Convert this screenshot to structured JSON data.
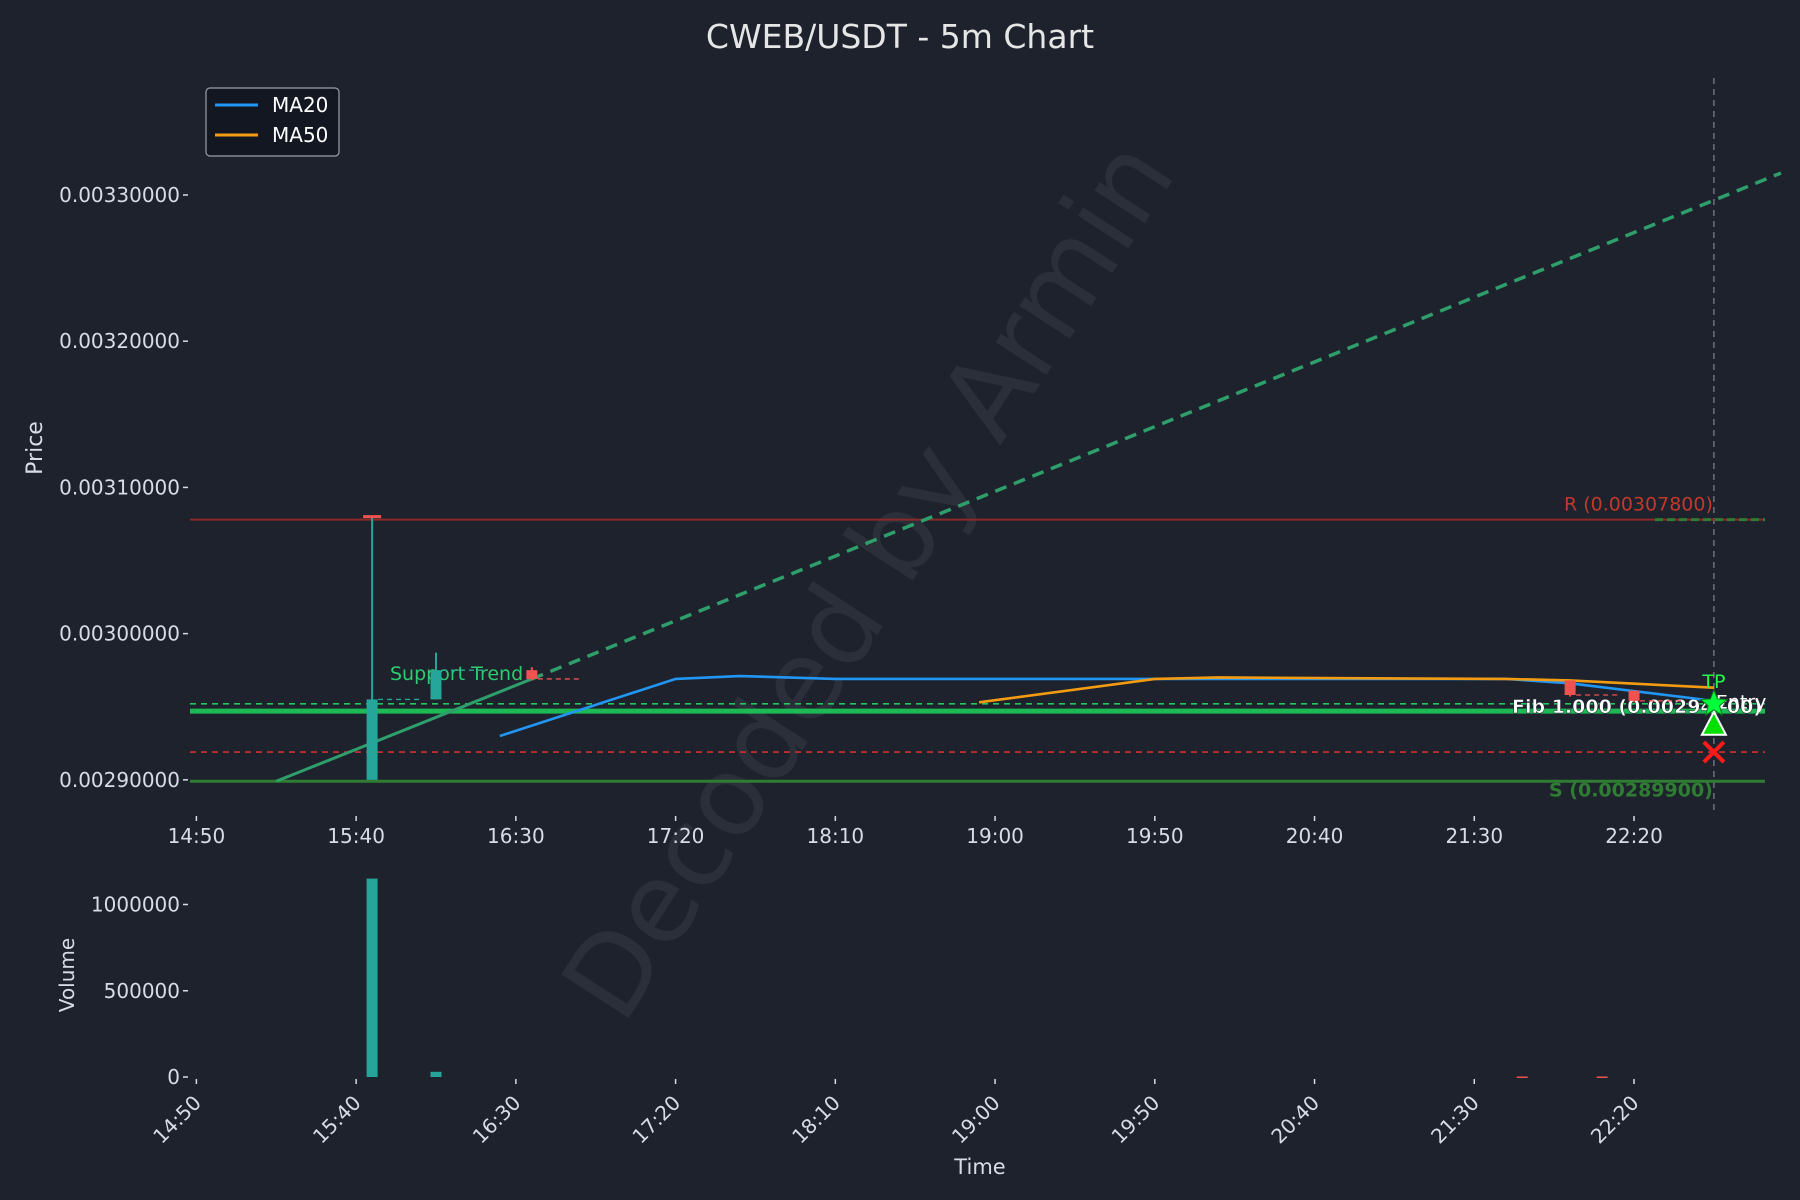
{
  "colors": {
    "background": "#1e222d",
    "text": "#d8dce6",
    "up": "#26a69a",
    "down": "#ef5350",
    "ma20": "#2196f3",
    "ma50": "#f39c12",
    "resistance": "#8b2a2a",
    "support": "#2e7d32",
    "trend": "#2e9e6a",
    "fib_green": "#1db954",
    "stop_red": "#d32f2f"
  },
  "chart_data": [
    {
      "type": "candlestick",
      "title": "CWEB/USDT - 5m Chart",
      "xlabel": "",
      "ylabel": "Price",
      "x_tick_labels": [
        "14:50",
        "15:40",
        "16:30",
        "17:20",
        "18:10",
        "19:00",
        "19:50",
        "20:40",
        "21:30",
        "22:20"
      ],
      "x_range": [
        "14:48",
        "23:01"
      ],
      "y_ticks": [
        "0.00290000",
        "0.00300000",
        "0.00310000",
        "0.00320000",
        "0.00330000"
      ],
      "ylim": [
        0.002878,
        0.00338
      ],
      "legend": {
        "position": "top-left",
        "entries": [
          "MA20",
          "MA50"
        ]
      },
      "candles": [
        {
          "t": "15:45",
          "open": 0.0029,
          "high": 0.00308,
          "low": 0.0029,
          "close": 0.002955
        },
        {
          "t": "16:05",
          "open": 0.002955,
          "high": 0.002987,
          "low": 0.002955,
          "close": 0.002975
        },
        {
          "t": "16:35",
          "open": 0.002975,
          "high": 0.002977,
          "low": 0.002968,
          "close": 0.002969
        },
        {
          "t": "22:00",
          "open": 0.002968,
          "high": 0.002968,
          "low": 0.002957,
          "close": 0.002958
        },
        {
          "t": "22:20",
          "open": 0.002961,
          "high": 0.002961,
          "low": 0.002953,
          "close": 0.002954
        }
      ],
      "series": [
        {
          "name": "MA20",
          "points": [
            {
              "t": "16:25",
              "y": 0.00293
            },
            {
              "t": "17:20",
              "y": 0.002969
            },
            {
              "t": "17:40",
              "y": 0.002971
            },
            {
              "t": "18:10",
              "y": 0.002969
            },
            {
              "t": "21:40",
              "y": 0.002969
            },
            {
              "t": "22:00",
              "y": 0.002966
            },
            {
              "t": "22:45",
              "y": 0.002954
            }
          ]
        },
        {
          "name": "MA50",
          "points": [
            {
              "t": "18:55",
              "y": 0.002953
            },
            {
              "t": "19:50",
              "y": 0.002969
            },
            {
              "t": "20:10",
              "y": 0.00297
            },
            {
              "t": "21:40",
              "y": 0.002969
            },
            {
              "t": "22:00",
              "y": 0.002968
            },
            {
              "t": "22:45",
              "y": 0.002963
            }
          ]
        }
      ],
      "levels": {
        "resistance": {
          "value": 0.003078,
          "label": "R (0.00307800)"
        },
        "support": {
          "value": 0.002899,
          "label": "S (0.00289900)"
        },
        "fib": {
          "value": 0.002947,
          "label": "Fib 1.000 (0.00294700)"
        },
        "dashed_green": 0.002952,
        "dashed_red": 0.002919
      },
      "support_trend": {
        "label": "Support Trend",
        "start": {
          "t": "15:15",
          "y": 0.002899
        },
        "end": {
          "t": "16:35",
          "y": 0.002969
        },
        "projection_end": {
          "t": "23:06",
          "y": 0.003315
        }
      },
      "markers": {
        "tp": {
          "label": "TP",
          "t": "22:45",
          "y": 0.002952
        },
        "entry": {
          "label": "Entry",
          "t": "22:45",
          "y": 0.002937
        },
        "stop": {
          "t": "22:45",
          "y": 0.002919
        },
        "current_time": "22:45"
      },
      "watermark": "Decoded by Armin"
    },
    {
      "type": "bar",
      "xlabel": "Time",
      "ylabel": "Volume",
      "y_ticks": [
        "0",
        "500000",
        "1000000"
      ],
      "ylim": [
        0,
        1200000
      ],
      "bars": [
        {
          "t": "15:45",
          "value": 1150000,
          "direction": "up"
        },
        {
          "t": "16:05",
          "value": 30000,
          "direction": "up"
        },
        {
          "t": "21:45",
          "value": 3000,
          "direction": "down"
        },
        {
          "t": "22:10",
          "value": 3000,
          "direction": "down"
        }
      ]
    }
  ]
}
